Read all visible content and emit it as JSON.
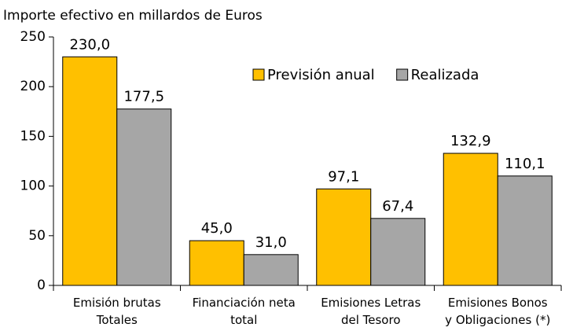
{
  "chart_data": {
    "type": "bar",
    "title": "Importe efectivo en millardos de Euros",
    "categories": [
      "Emisión brutas\nTotales",
      "Financiación neta\ntotal",
      "Emisiones Letras\ndel Tesoro",
      "Emisiones Bonos\ny Obligaciones (*)"
    ],
    "series": [
      {
        "name": "Previsión anual",
        "color": "#FFC000",
        "values": [
          230.0,
          45.0,
          97.1,
          132.9
        ],
        "value_labels": [
          "230,0",
          "45,0",
          "97,1",
          "132,9"
        ]
      },
      {
        "name": "Realizada",
        "color": "#A6A6A6",
        "values": [
          177.5,
          31.0,
          67.4,
          110.1
        ],
        "value_labels": [
          "177,5",
          "31,0",
          "67,4",
          "110,1"
        ]
      }
    ],
    "ylim": [
      0,
      250
    ],
    "yticks": [
      0,
      50,
      100,
      150,
      200,
      250
    ],
    "grid": false,
    "legend": "top-right"
  }
}
